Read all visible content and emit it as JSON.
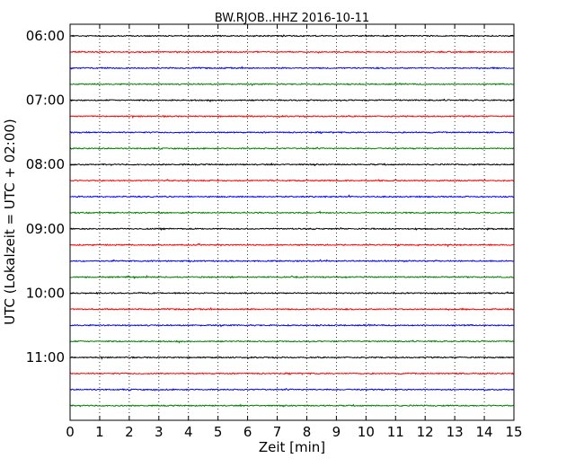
{
  "chart_data": {
    "type": "line",
    "title": "BW.RJOB..HHZ 2016-10-11",
    "xlabel": "Zeit  [min]",
    "ylabel": "UTC (Lokalzeit = UTC + 02:00)",
    "xlim": [
      0,
      15
    ],
    "x_ticks": [
      "0",
      "1",
      "2",
      "3",
      "4",
      "5",
      "6",
      "7",
      "8",
      "9",
      "10",
      "11",
      "12",
      "13",
      "14",
      "15"
    ],
    "y_ticks": [
      "06:00",
      "07:00",
      "08:00",
      "09:00",
      "10:00",
      "11:00"
    ],
    "grid": {
      "x": true,
      "y": false,
      "style": "dotted"
    },
    "series_colors": [
      "#000000",
      "#ff0000",
      "#0000ff",
      "#008000"
    ],
    "traces": [
      {
        "start": "06:00",
        "color": "#000000"
      },
      {
        "start": "06:15",
        "color": "#ff0000"
      },
      {
        "start": "06:30",
        "color": "#0000ff"
      },
      {
        "start": "06:45",
        "color": "#008000"
      },
      {
        "start": "07:00",
        "color": "#000000"
      },
      {
        "start": "07:15",
        "color": "#ff0000"
      },
      {
        "start": "07:30",
        "color": "#0000ff"
      },
      {
        "start": "07:45",
        "color": "#008000"
      },
      {
        "start": "08:00",
        "color": "#000000"
      },
      {
        "start": "08:15",
        "color": "#ff0000"
      },
      {
        "start": "08:30",
        "color": "#0000ff"
      },
      {
        "start": "08:45",
        "color": "#008000"
      },
      {
        "start": "09:00",
        "color": "#000000"
      },
      {
        "start": "09:15",
        "color": "#ff0000"
      },
      {
        "start": "09:30",
        "color": "#0000ff"
      },
      {
        "start": "09:45",
        "color": "#008000"
      },
      {
        "start": "10:00",
        "color": "#000000"
      },
      {
        "start": "10:15",
        "color": "#ff0000"
      },
      {
        "start": "10:30",
        "color": "#0000ff"
      },
      {
        "start": "10:45",
        "color": "#008000"
      },
      {
        "start": "11:00",
        "color": "#000000"
      },
      {
        "start": "11:15",
        "color": "#ff0000"
      },
      {
        "start": "11:30",
        "color": "#0000ff"
      },
      {
        "start": "11:45",
        "color": "#008000"
      }
    ]
  }
}
